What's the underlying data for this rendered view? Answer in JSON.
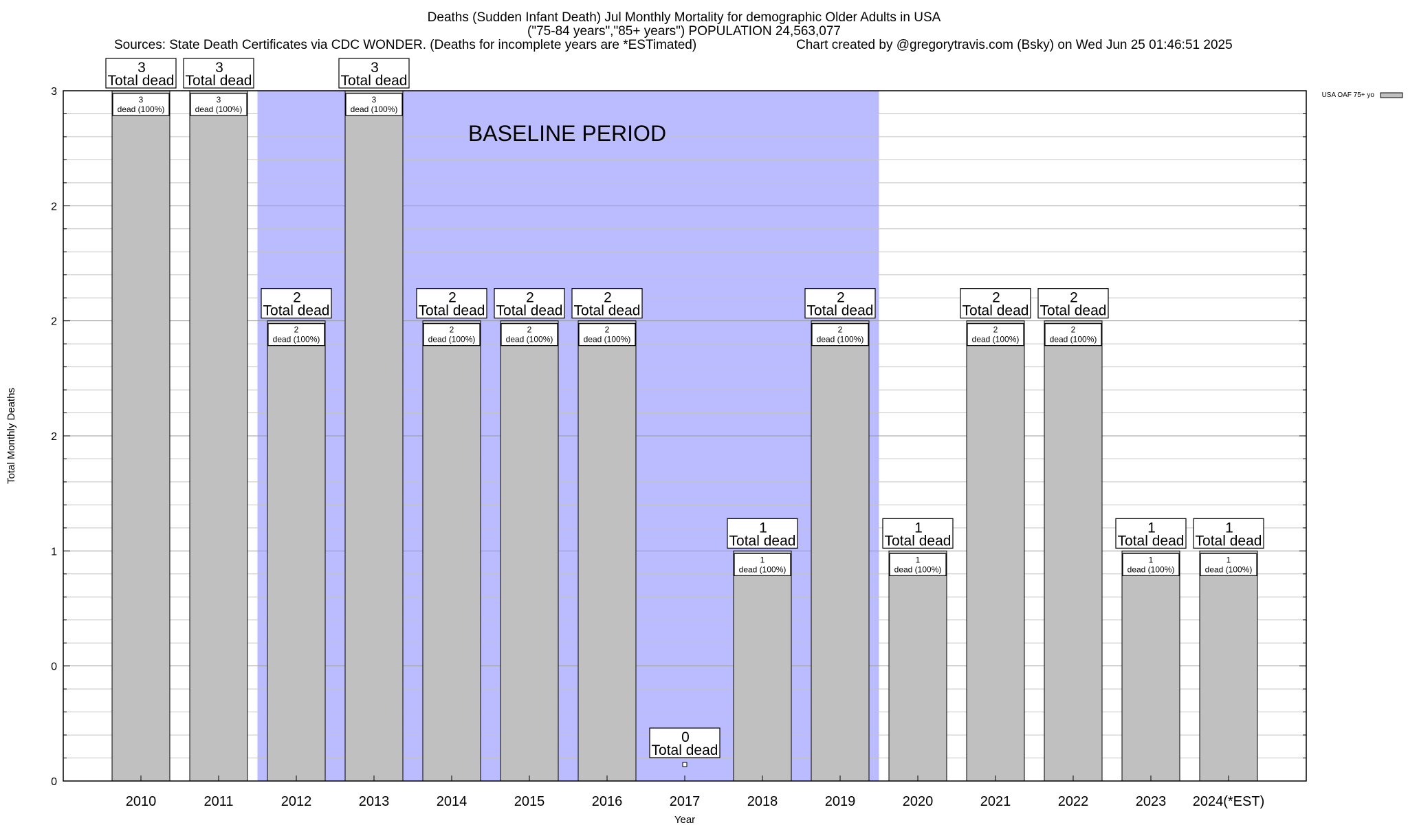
{
  "chart_data": {
    "type": "bar",
    "title": "Deaths (Sudden Infant Death) Jul Monthly Mortality for demographic Older Adults in USA",
    "subtitle": "(\"75-84 years\",\"85+ years\") POPULATION 24,563,077",
    "sources": "Sources: State Death Certificates via CDC WONDER. (Deaths for incomplete years are *ESTimated)",
    "credit": "Chart created by @gregorytravis.com (Bsky) on Wed Jun 25 01:46:51 2025",
    "xlabel": "Year",
    "ylabel": "Total Monthly Deaths",
    "ylim": [
      0,
      3
    ],
    "y_tick_values": [
      0,
      0.5,
      1,
      1.5,
      2,
      2.5,
      3
    ],
    "y_tick_labels": [
      "0",
      "0",
      "1",
      "2",
      "2",
      "2",
      "3"
    ],
    "grid": true,
    "legend": {
      "label": "USA OAF 75+ yo",
      "position": "top-right",
      "color": "#c0c0c0"
    },
    "baseline": {
      "label": "BASELINE PERIOD",
      "from": "2012",
      "to": "2019",
      "color": "#bbbbff"
    },
    "bar_color": "#c0c0c0",
    "categories": [
      "2010",
      "2011",
      "2012",
      "2013",
      "2014",
      "2015",
      "2016",
      "2017",
      "2018",
      "2019",
      "2020",
      "2021",
      "2022",
      "2023",
      "2024(*EST)"
    ],
    "series": [
      {
        "name": "USA OAF 75+ yo",
        "values": [
          3,
          3,
          2,
          3,
          2,
          2,
          2,
          0,
          1,
          2,
          1,
          2,
          2,
          1,
          1
        ]
      }
    ],
    "total_labels": [
      "3",
      "3",
      "2",
      "3",
      "2",
      "2",
      "2",
      "0",
      "1",
      "2",
      "1",
      "2",
      "2",
      "1",
      "1"
    ],
    "total_label_suffix": "Total dead",
    "inner_label_suffix": "dead (100%)"
  }
}
